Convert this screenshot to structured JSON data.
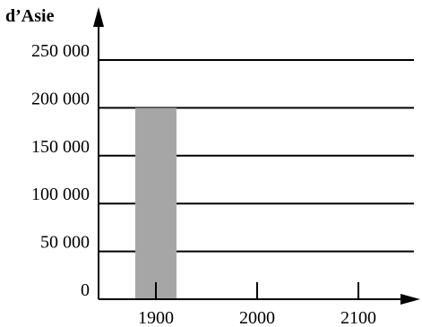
{
  "chart_data": {
    "type": "bar",
    "ylabel": "d’Asie",
    "ylim": [
      0,
      250000
    ],
    "yticks": [
      0,
      50000,
      100000,
      150000,
      200000,
      250000
    ],
    "ytick_labels": [
      "0",
      "50 000",
      "100 000",
      "150 000",
      "200 000",
      "250 000"
    ],
    "grid": true,
    "categories": [
      "1900",
      "2000",
      "2100"
    ],
    "values": [
      200000,
      null,
      null
    ],
    "bar_color": "#a6a6a6"
  }
}
